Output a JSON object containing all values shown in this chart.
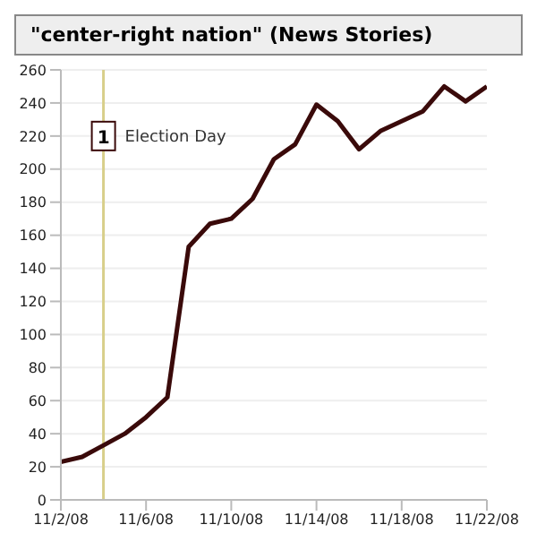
{
  "chart_data": {
    "type": "line",
    "title": "\"center-right nation\" (News Stories)",
    "x": [
      "--11-02",
      "--11-03",
      "--11-04",
      "--11-05",
      "--11-06",
      "--11-07",
      "--11-08",
      "--11-09",
      "--11-10",
      "--11-11",
      "--11-12",
      "--11-13",
      "--11-14",
      "--11-15",
      "--11-16",
      "--11-17",
      "--11-18",
      "--11-19",
      "--11-20",
      "--11-21",
      "--11-22"
    ],
    "series": [
      {
        "color": "#3a0a0a",
        "values": [
          23,
          26,
          33,
          40,
          50,
          62,
          153,
          167,
          170,
          182,
          206,
          215,
          239,
          229,
          212,
          223,
          229,
          235,
          250,
          241,
          250
        ]
      }
    ],
    "xlim": [
      "--11-02",
      "--11-22"
    ],
    "xticks": [
      {
        "value": "--11-02",
        "label": "11/2/08"
      },
      {
        "value": "--11-06",
        "label": "11/6/08"
      },
      {
        "value": "--11-10",
        "label": "11/10/08"
      },
      {
        "value": "--11-14",
        "label": "11/14/08"
      },
      {
        "value": "--11-18",
        "label": "11/18/08"
      },
      {
        "value": "--11-22",
        "label": "11/22/08"
      }
    ],
    "ylim": [
      0,
      260
    ],
    "yticks": [
      0,
      20,
      40,
      60,
      80,
      100,
      120,
      140,
      160,
      180,
      200,
      220,
      240,
      260
    ],
    "grid": "y",
    "marker": "none",
    "line_style": "solid",
    "ref_lines": [
      {
        "axis": "x",
        "value": "--11-04",
        "label": "Election Day",
        "color": "#d8cf8a"
      }
    ],
    "annotations": [
      {
        "text": "1",
        "x": "--11-04",
        "y": 220
      }
    ]
  }
}
